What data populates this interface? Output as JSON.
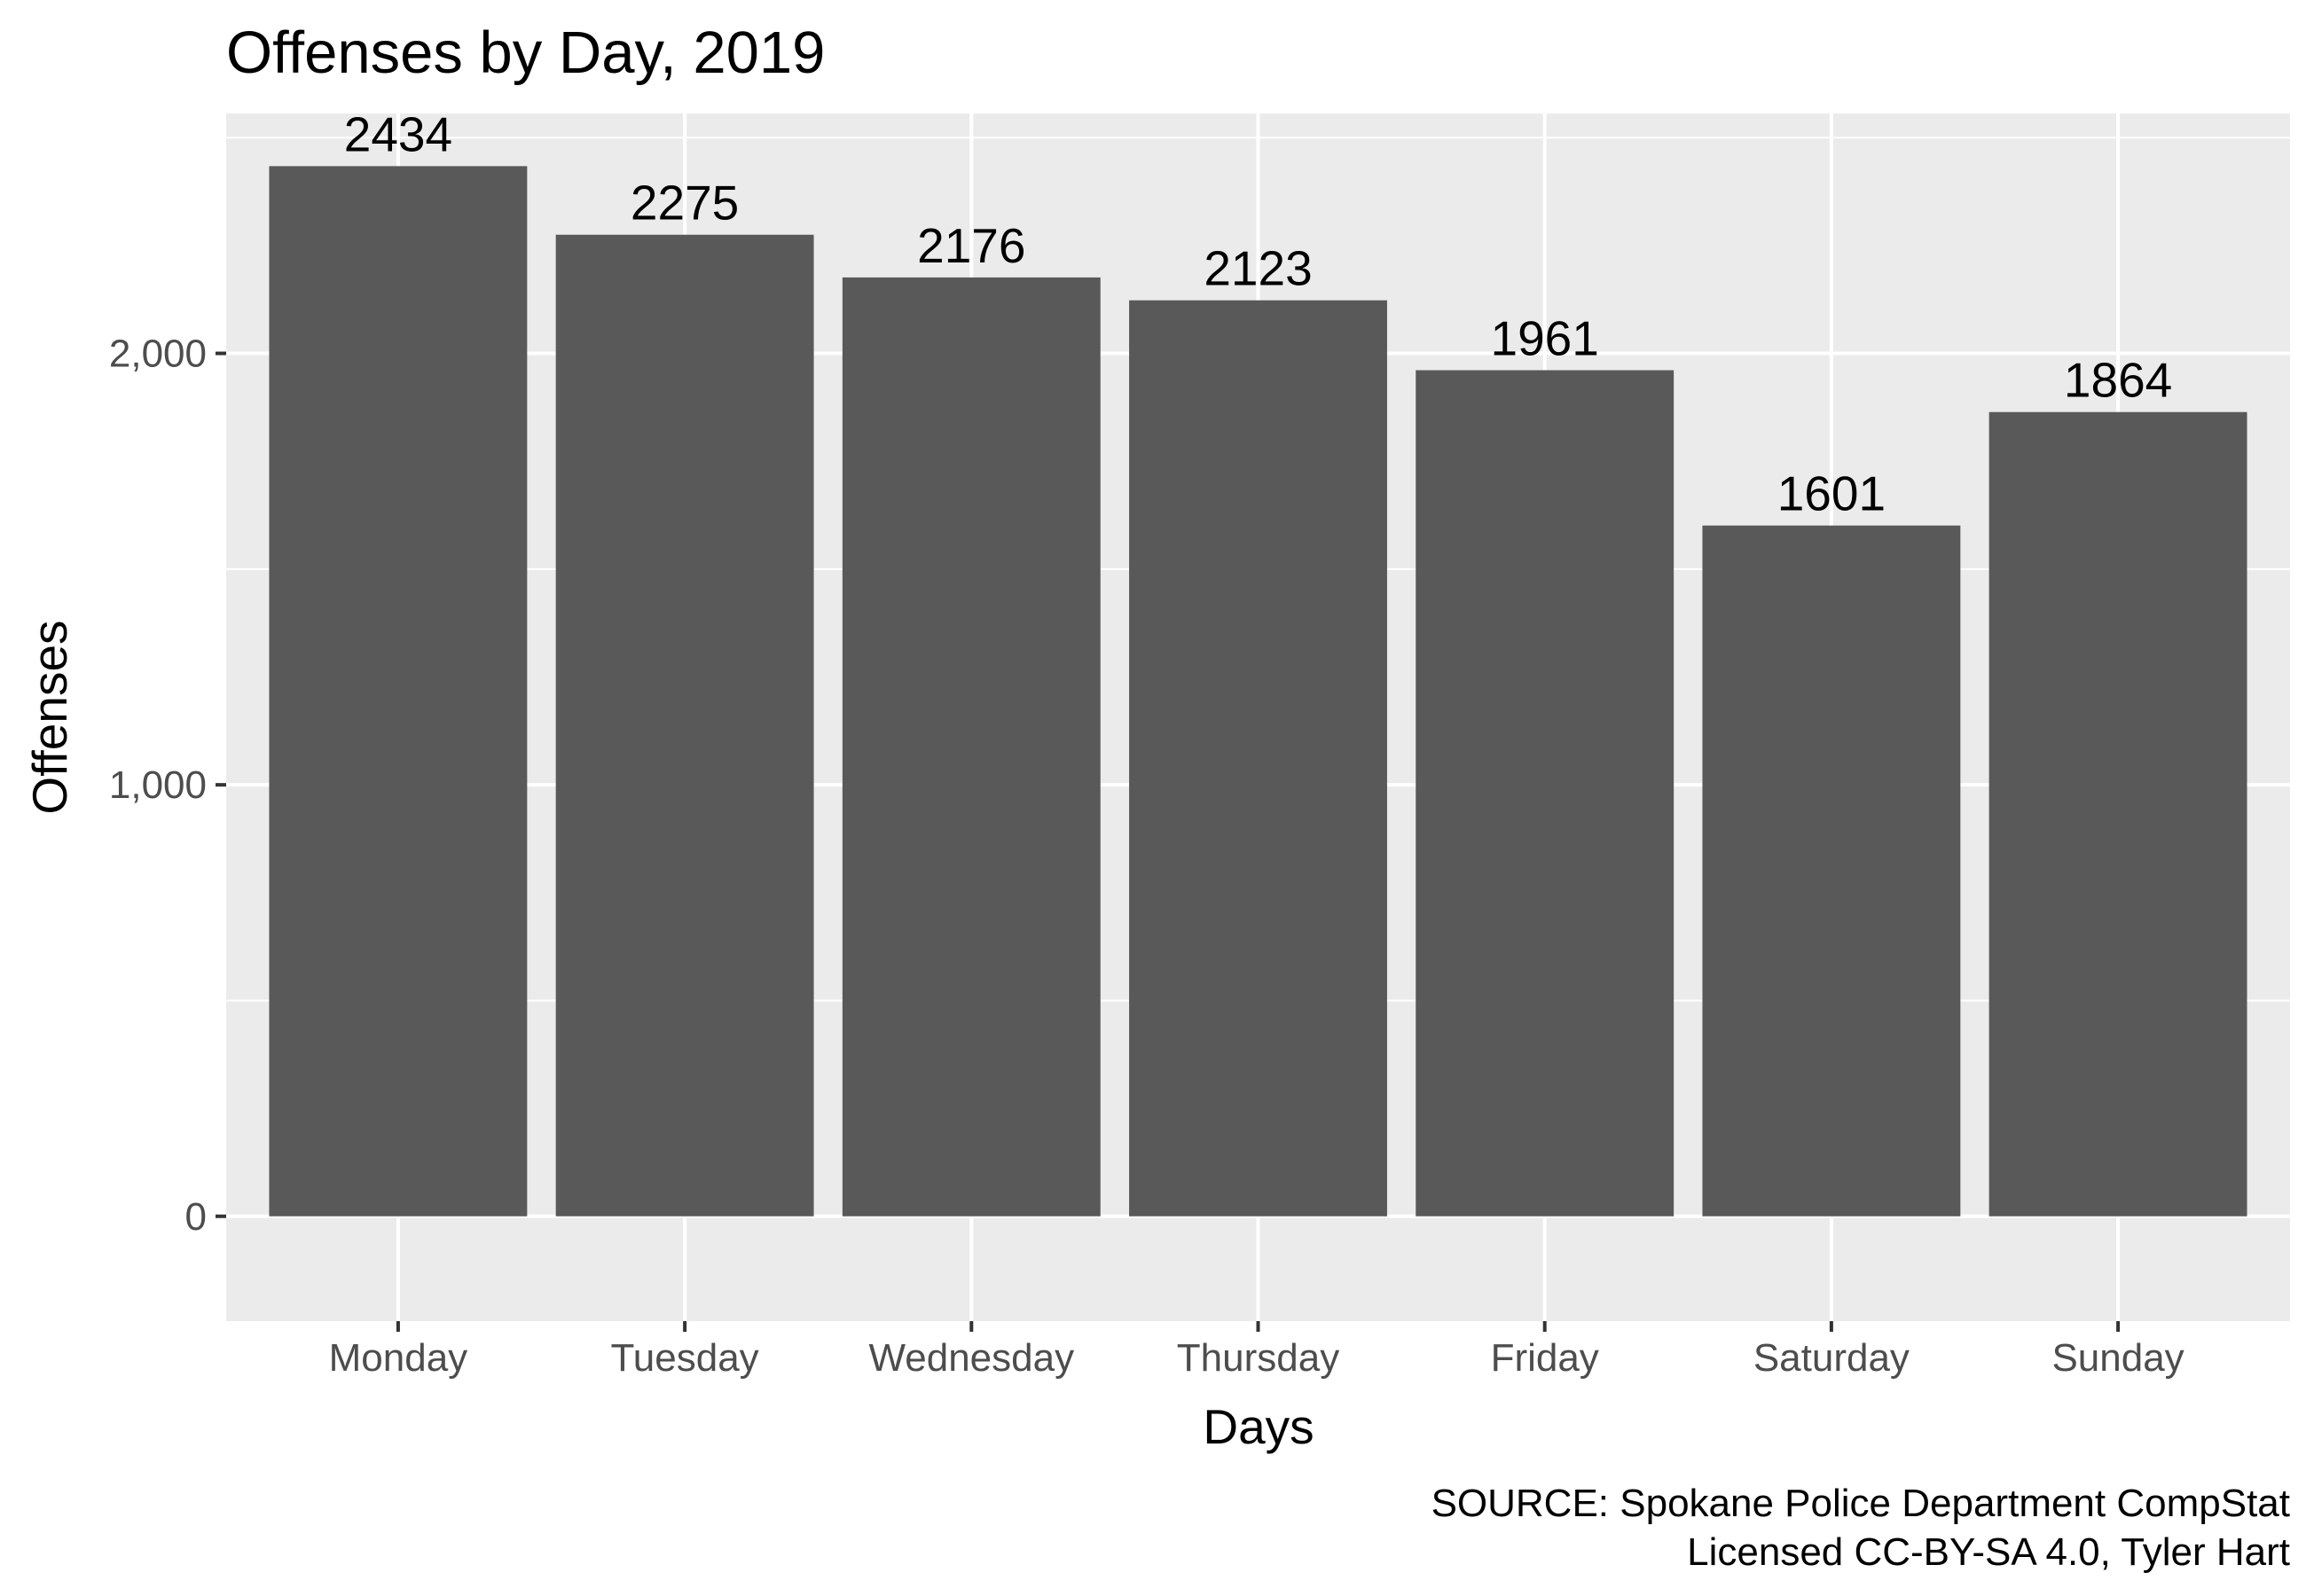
{
  "chart_data": {
    "type": "bar",
    "title": "Offenses by Day, 2019",
    "xlabel": "Days",
    "ylabel": "Offenses",
    "categories": [
      "Monday",
      "Tuesday",
      "Wednesday",
      "Thursday",
      "Friday",
      "Saturday",
      "Sunday"
    ],
    "values": [
      2434,
      2275,
      2176,
      2123,
      1961,
      1601,
      1864
    ],
    "data_labels": [
      "2434",
      "2275",
      "2176",
      "2123",
      "1961",
      "1601",
      "1864"
    ],
    "y_ticks": [
      0,
      1000,
      2000
    ],
    "y_tick_labels": [
      "0",
      "1,000",
      "2,000"
    ],
    "ylim": [
      -243,
      2556
    ],
    "grid": true,
    "legend": "none",
    "caption": [
      "SOURCE: Spokane Police Department CompStat",
      "Licensed CC-BY-SA 4.0, Tyler Hart"
    ],
    "colors": {
      "bar": "#595959",
      "panel": "#ebebeb",
      "grid": "#ffffff"
    }
  }
}
